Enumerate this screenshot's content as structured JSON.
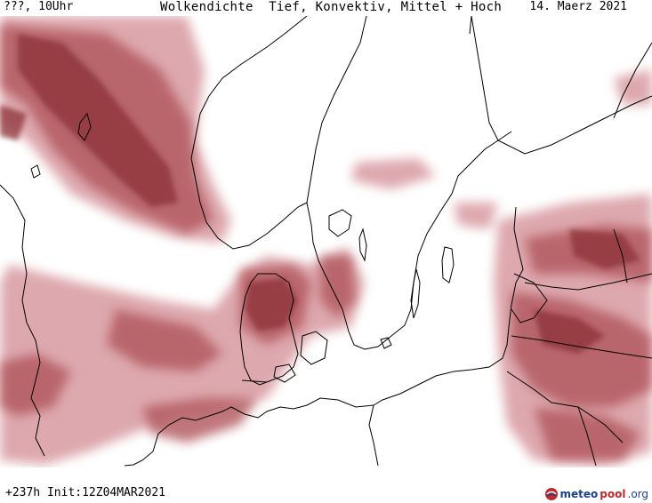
{
  "header": {
    "left": "???, 10Uhr",
    "title": "Wolkendichte  Tief, Konvektiv, Mittel + Hoch",
    "date": "14. Maerz 2021"
  },
  "footer": {
    "run": "+237h Init:12Z04MAR2021"
  },
  "logo": {
    "part1": "meteo",
    "part2": "pool",
    "part3": ".org"
  },
  "colors": {
    "cloud_dark": "#8c3338",
    "cloud_mid": "#b0555c",
    "cloud_light": "#d89aa0",
    "coast": "#000000",
    "logo_blue": "#1a3f8f",
    "logo_red": "#c0282c"
  }
}
